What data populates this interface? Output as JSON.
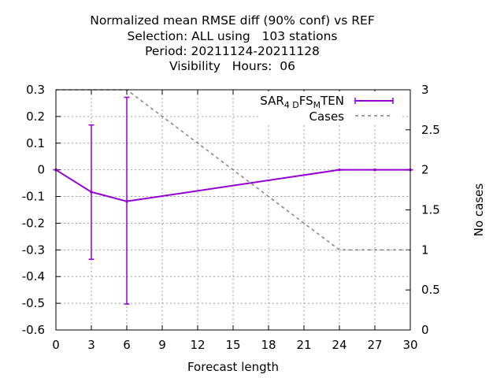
{
  "chart_data": {
    "type": "line",
    "title": [
      "Normalized mean RMSE diff (90% conf) vs REF",
      "Selection: ALL using   103 stations",
      "Period: 20211124-20211128",
      "Visibility   Hours:  06"
    ],
    "xlabel": "Forecast length",
    "ylabel": "",
    "y2label": "No cases",
    "xlim": [
      0,
      30
    ],
    "ylim": [
      -0.6,
      0.3
    ],
    "y2lim": [
      0,
      3
    ],
    "xticks": [
      0,
      3,
      6,
      9,
      12,
      15,
      18,
      21,
      24,
      27,
      30
    ],
    "yticks": [
      -0.6,
      -0.5,
      -0.4,
      -0.3,
      -0.2,
      -0.1,
      0,
      0.1,
      0.2,
      0.3
    ],
    "y2ticks": [
      0,
      0.5,
      1,
      1.5,
      2,
      2.5,
      3
    ],
    "grid": true,
    "legend_position": "top-right",
    "series": [
      {
        "name_parts": [
          "SAR",
          "4 D",
          "FS",
          "M",
          "TEN"
        ],
        "axis": "y1",
        "style": "line-errorbars",
        "color": "#9400d3",
        "x": [
          0,
          3,
          6,
          24,
          27,
          30
        ],
        "y": [
          0,
          -0.083,
          -0.118,
          0,
          0,
          0
        ],
        "err_low": [
          0,
          -0.335,
          -0.503,
          0,
          0,
          0
        ],
        "err_high": [
          0,
          0.168,
          0.272,
          0,
          0,
          0
        ]
      },
      {
        "name": "Cases",
        "axis": "y2",
        "style": "dashed",
        "color": "#808080",
        "x": [
          0,
          3,
          6,
          24,
          27,
          30
        ],
        "y": [
          3,
          3,
          3,
          1,
          1,
          1
        ]
      }
    ]
  }
}
